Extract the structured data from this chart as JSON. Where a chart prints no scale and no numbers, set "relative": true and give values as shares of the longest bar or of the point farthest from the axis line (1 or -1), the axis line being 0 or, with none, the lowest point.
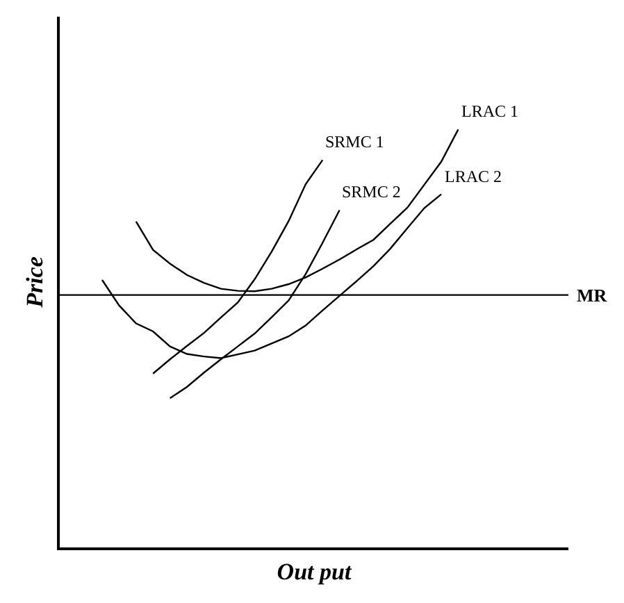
{
  "chart_data": {
    "type": "line",
    "relative": true,
    "xlabel": "Out put",
    "ylabel": "Price",
    "legend": false,
    "marker": "none",
    "line_style": "solid",
    "categories": [
      null,
      null,
      null,
      null,
      null,
      null,
      null,
      null,
      null,
      null,
      null,
      null,
      null,
      null,
      null,
      null,
      null,
      null,
      null,
      null,
      null,
      null,
      null,
      null,
      null,
      null,
      null,
      null,
      null,
      null
    ],
    "series": [
      {
        "name": "LRAC 1",
        "color": "#000000",
        "values": [
          null,
          null,
          null,
          null,
          0.78,
          0.712,
          0.679,
          0.652,
          0.633,
          0.619,
          0.614,
          0.613,
          0.619,
          0.63,
          0.646,
          0.667,
          0.689,
          0.713,
          0.736,
          0.775,
          0.813,
          0.868,
          0.923,
          1.0,
          null,
          null,
          null,
          null,
          null,
          null
        ]
      },
      {
        "name": "LRAC 2",
        "color": "#000000",
        "values": [
          null,
          null,
          0.64,
          0.579,
          0.536,
          0.517,
          0.481,
          0.463,
          0.457,
          0.453,
          0.462,
          0.471,
          0.488,
          0.505,
          0.531,
          0.567,
          0.602,
          0.637,
          0.673,
          0.715,
          0.764,
          0.812,
          0.845,
          null,
          null,
          null,
          null,
          null,
          null,
          null
        ]
      },
      {
        "name": "SRMC 1",
        "color": "#000000",
        "values": [
          null,
          null,
          null,
          null,
          null,
          0.416,
          0.45,
          0.482,
          0.513,
          0.55,
          0.586,
          0.642,
          0.708,
          0.781,
          0.869,
          0.927,
          null,
          null,
          null,
          null,
          null,
          null,
          null,
          null,
          null,
          null,
          null,
          null,
          null,
          null
        ]
      },
      {
        "name": "SRMC 2",
        "color": "#000000",
        "values": [
          null,
          null,
          null,
          null,
          null,
          null,
          0.357,
          0.384,
          0.418,
          0.45,
          0.481,
          0.512,
          0.551,
          0.591,
          0.654,
          0.729,
          0.807,
          null,
          null,
          null,
          null,
          null,
          null,
          null,
          null,
          null,
          null,
          null,
          null,
          null
        ]
      }
    ],
    "ref_lines": [
      {
        "axis": "y",
        "value": 0.604,
        "label": "MR",
        "color": "#000000"
      }
    ]
  }
}
